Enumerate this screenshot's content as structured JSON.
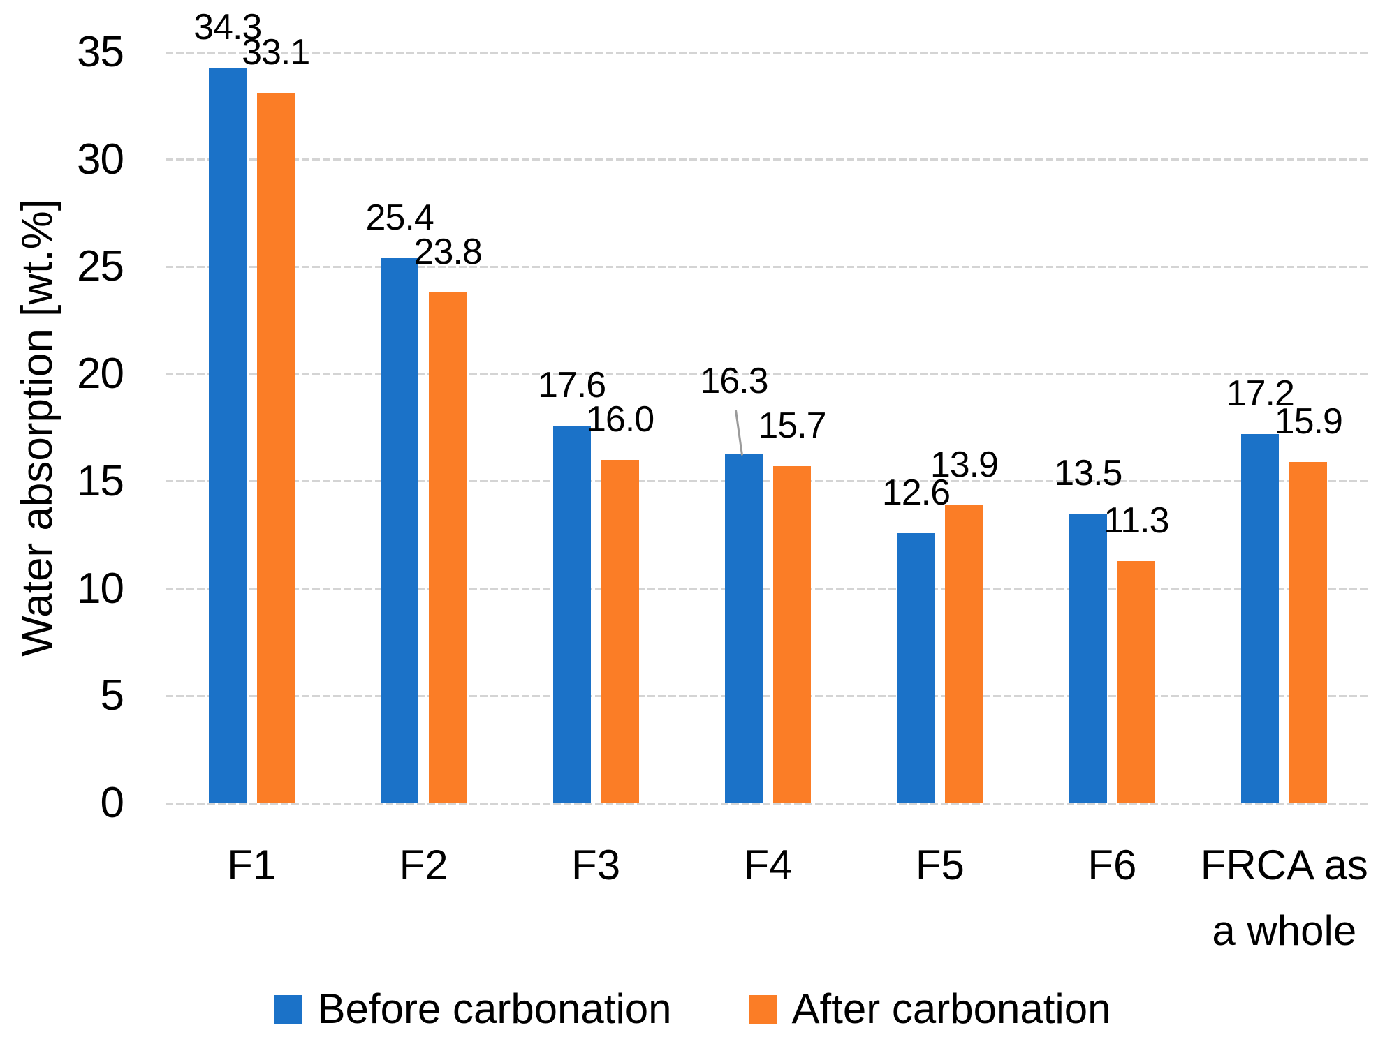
{
  "chart_data": {
    "type": "bar",
    "title": "",
    "xlabel": "",
    "ylabel": "Water absorption [wt.%]",
    "ylim": [
      0,
      35
    ],
    "yticks": [
      0,
      5,
      10,
      15,
      20,
      25,
      30,
      35
    ],
    "grid": true,
    "gridline_color": "#d4d4d4",
    "categories": [
      "F1",
      "F2",
      "F3",
      "F4",
      "F5",
      "F6",
      "FRCA as\na whole"
    ],
    "series": [
      {
        "name": "Before carbonation",
        "color": "#1b72c8",
        "values": [
          34.3,
          25.4,
          17.6,
          16.3,
          12.6,
          13.5,
          17.2
        ],
        "labels": [
          "34.3",
          "25.4",
          "17.6",
          "16.3",
          "12.6",
          "13.5",
          "17.2"
        ]
      },
      {
        "name": "After carbonation",
        "color": "#fb7d26",
        "values": [
          33.1,
          23.8,
          16.0,
          15.7,
          13.9,
          11.3,
          15.9
        ],
        "labels": [
          "33.1",
          "23.8",
          "16.0",
          "15.7",
          "13.9",
          "11.3",
          "15.9"
        ]
      }
    ],
    "annotations": [
      {
        "type": "leader-line",
        "category": "F4",
        "series": "Before carbonation",
        "color": "#9b9b9b",
        "note": "data label 16.3 is raised above its bar and connected by a thin gray leader line"
      }
    ],
    "legend": {
      "position": "bottom",
      "items": [
        "Before carbonation",
        "After carbonation"
      ]
    },
    "text_color": "#000000",
    "background_color": "#ffffff"
  }
}
